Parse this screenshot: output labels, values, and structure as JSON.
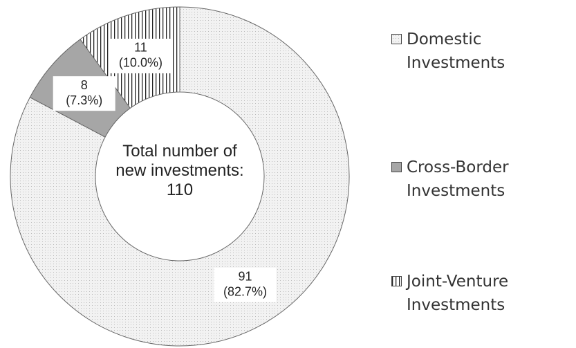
{
  "chart_data": {
    "type": "donut",
    "categories": [
      "Domestic Investments",
      "Cross-Border Investments",
      "Joint-Venture Investments"
    ],
    "values": [
      91,
      8,
      11
    ],
    "percentages": [
      82.7,
      7.3,
      10.0
    ],
    "percentage_labels": [
      "(82.7%)",
      "(7.3%)",
      "(10.0%)"
    ],
    "colors": [
      "#f2f2f2",
      "#a6a6a6",
      "#ffffff"
    ],
    "patterns": [
      "dots",
      "solid",
      "vertical-stripes"
    ],
    "center_label": "Total number of new investments:",
    "total": 110
  }
}
